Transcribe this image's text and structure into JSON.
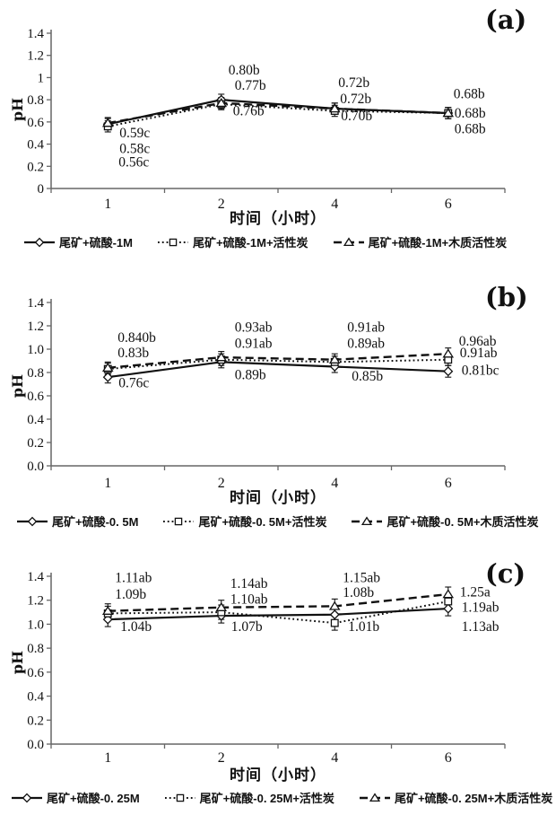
{
  "chart_data": [
    {
      "type": "line",
      "title": "(a)",
      "xlabel": "时间（小时）",
      "ylabel": "pH",
      "x_categories": [
        "1",
        "2",
        "4",
        "6"
      ],
      "ylim": [
        0,
        1.4
      ],
      "y_tick_labels": [
        "1.4",
        "1.2",
        "1",
        "0.8",
        "0.6",
        "0.4",
        "0.2",
        "0"
      ],
      "grid": false,
      "legend_position": "bottom",
      "error_bar": 0.05,
      "series": [
        {
          "name": "尾矿+硫酸-1M",
          "marker": "diamond",
          "line": "solid",
          "values": [
            0.58,
            0.8,
            0.72,
            0.68
          ]
        },
        {
          "name": "尾矿+硫酸-1M+活性炭",
          "marker": "square",
          "line": "dotted",
          "values": [
            0.56,
            0.76,
            0.7,
            0.68
          ]
        },
        {
          "name": "尾矿+硫酸-1M+木质活性炭",
          "marker": "triangle",
          "line": "dashed",
          "values": [
            0.59,
            0.77,
            0.72,
            0.68
          ]
        }
      ],
      "point_labels": [
        {
          "x": 0,
          "text": "0.59c",
          "y": 0.5,
          "dx": 13
        },
        {
          "x": 0,
          "text": "0.58c",
          "y": 0.36,
          "dx": 13
        },
        {
          "x": 0,
          "text": "0.56c",
          "y": 0.24,
          "dx": 12
        },
        {
          "x": 1,
          "text": "0.80b",
          "y": 1.07,
          "dx": 8
        },
        {
          "x": 1,
          "text": "0.77b",
          "y": 0.93,
          "dx": 15
        },
        {
          "x": 1,
          "text": "0.76b",
          "y": 0.7,
          "dx": 13
        },
        {
          "x": 2,
          "text": "0.72b",
          "y": 0.955,
          "dx": 4
        },
        {
          "x": 2,
          "text": "0.72b",
          "y": 0.81,
          "dx": 6
        },
        {
          "x": 2,
          "text": "0.70b",
          "y": 0.655,
          "dx": 7
        },
        {
          "x": 3,
          "text": "0.68b",
          "y": 0.855,
          "dx": 6
        },
        {
          "x": 3,
          "text": "0.68b",
          "y": 0.68,
          "dx": 7
        },
        {
          "x": 3,
          "text": "0.68b",
          "y": 0.54,
          "dx": 7
        }
      ]
    },
    {
      "type": "line",
      "title": "(b)",
      "xlabel": "时间（小时）",
      "ylabel": "pH",
      "x_categories": [
        "1",
        "2",
        "4",
        "6"
      ],
      "ylim": [
        0,
        1.4
      ],
      "y_tick_labels": [
        "1.4",
        "1.2",
        "1.0",
        "0.8",
        "0.6",
        "0.4",
        "0.2",
        "0.0"
      ],
      "grid": false,
      "legend_position": "bottom",
      "error_bar": 0.05,
      "series": [
        {
          "name": "尾矿+硫酸-0. 5M",
          "marker": "diamond",
          "line": "solid",
          "values": [
            0.76,
            0.89,
            0.85,
            0.81
          ]
        },
        {
          "name": "尾矿+硫酸-0. 5M+活性炭",
          "marker": "square",
          "line": "dotted",
          "values": [
            0.83,
            0.91,
            0.89,
            0.91
          ]
        },
        {
          "name": "尾矿+硫酸-0. 5M+木质活性炭",
          "marker": "triangle",
          "line": "dashed",
          "values": [
            0.84,
            0.93,
            0.91,
            0.96
          ]
        }
      ],
      "point_labels": [
        {
          "x": 0,
          "text": "0.840b",
          "y": 1.1,
          "dx": 11
        },
        {
          "x": 0,
          "text": "0.83b",
          "y": 0.97,
          "dx": 11
        },
        {
          "x": 0,
          "text": "0.76c",
          "y": 0.71,
          "dx": 12
        },
        {
          "x": 1,
          "text": "0.93ab",
          "y": 1.19,
          "dx": 15
        },
        {
          "x": 1,
          "text": "0.91ab",
          "y": 1.05,
          "dx": 15
        },
        {
          "x": 1,
          "text": "0.89b",
          "y": 0.78,
          "dx": 15
        },
        {
          "x": 2,
          "text": "0.91ab",
          "y": 1.19,
          "dx": 14
        },
        {
          "x": 2,
          "text": "0.89ab",
          "y": 1.05,
          "dx": 14
        },
        {
          "x": 2,
          "text": "0.85b",
          "y": 0.77,
          "dx": 19
        },
        {
          "x": 3,
          "text": "0.96ab",
          "y": 1.07,
          "dx": 12
        },
        {
          "x": 3,
          "text": "0.91ab",
          "y": 0.97,
          "dx": 13
        },
        {
          "x": 3,
          "text": "0.81bc",
          "y": 0.82,
          "dx": 15
        }
      ]
    },
    {
      "type": "line",
      "title": "(c)",
      "xlabel": "时间（小时）",
      "ylabel": "pH",
      "x_categories": [
        "1",
        "2",
        "4",
        "6"
      ],
      "ylim": [
        0,
        1.4
      ],
      "y_tick_labels": [
        "1.4",
        "1.2",
        "1.0",
        "0.8",
        "0.6",
        "0.4",
        "0.2",
        "0.0"
      ],
      "grid": false,
      "legend_position": "bottom",
      "error_bar": 0.06,
      "series": [
        {
          "name": "尾矿+硫酸-0. 25M",
          "marker": "diamond",
          "line": "solid",
          "values": [
            1.04,
            1.07,
            1.08,
            1.13
          ]
        },
        {
          "name": "尾矿+硫酸-0. 25M+活性炭",
          "marker": "square",
          "line": "dotted",
          "values": [
            1.09,
            1.1,
            1.01,
            1.19
          ]
        },
        {
          "name": "尾矿+硫酸-0. 25M+木质活性炭",
          "marker": "triangle",
          "line": "dashed",
          "values": [
            1.11,
            1.14,
            1.15,
            1.25
          ]
        }
      ],
      "point_labels": [
        {
          "x": 0,
          "text": "1.11ab",
          "y": 1.39,
          "dx": 8
        },
        {
          "x": 0,
          "text": "1.09b",
          "y": 1.25,
          "dx": 8
        },
        {
          "x": 0,
          "text": "1.04b",
          "y": 0.98,
          "dx": 14
        },
        {
          "x": 1,
          "text": "1.14ab",
          "y": 1.34,
          "dx": 10
        },
        {
          "x": 1,
          "text": "1.10ab",
          "y": 1.21,
          "dx": 10
        },
        {
          "x": 1,
          "text": "1.07b",
          "y": 0.98,
          "dx": 11
        },
        {
          "x": 2,
          "text": "1.15ab",
          "y": 1.39,
          "dx": 9
        },
        {
          "x": 2,
          "text": "1.08b",
          "y": 1.265,
          "dx": 9
        },
        {
          "x": 2,
          "text": "1.01b",
          "y": 0.98,
          "dx": 15
        },
        {
          "x": 3,
          "text": "1.25a",
          "y": 1.27,
          "dx": 13
        },
        {
          "x": 3,
          "text": "1.19ab",
          "y": 1.14,
          "dx": 15
        },
        {
          "x": 3,
          "text": "1.13ab",
          "y": 0.98,
          "dx": 15
        }
      ]
    }
  ],
  "colors": {
    "ink": "#111111",
    "axis": "#666666",
    "background": "#ffffff"
  }
}
